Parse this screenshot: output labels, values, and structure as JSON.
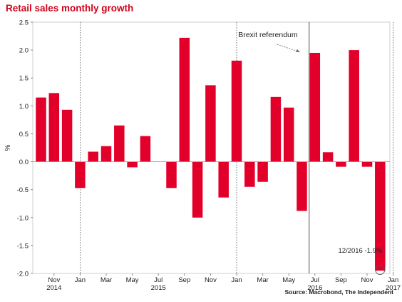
{
  "title": "Retail sales monthly growth",
  "source": "Source: Macrobond, The Independent",
  "colors": {
    "bar": "#e2002a",
    "title": "#d0021b",
    "annotation": "#333333"
  },
  "chart_data": {
    "type": "bar",
    "title": "Retail sales monthly growth",
    "ylabel": "%",
    "xlabel": "",
    "ylim": [
      -2.0,
      2.5
    ],
    "yticks": [
      "2.5",
      "2.0",
      "1.5",
      "1.0",
      "0.5",
      "0.0",
      "-0.5",
      "-1.0",
      "-1.5",
      "-2.0"
    ],
    "ytick_values": [
      2.5,
      2.0,
      1.5,
      1.0,
      0.5,
      0.0,
      -0.5,
      -1.0,
      -1.5,
      -2.0
    ],
    "categories": [
      "2014-10",
      "2014-11",
      "2014-12",
      "2015-01",
      "2015-02",
      "2015-03",
      "2015-04",
      "2015-05",
      "2015-06",
      "2015-07",
      "2015-08",
      "2015-09",
      "2015-10",
      "2015-11",
      "2015-12",
      "2016-01",
      "2016-02",
      "2016-03",
      "2016-04",
      "2016-05",
      "2016-06",
      "2016-07",
      "2016-08",
      "2016-09",
      "2016-10",
      "2016-11",
      "2016-12"
    ],
    "values": [
      1.15,
      1.23,
      0.93,
      -0.47,
      0.18,
      0.28,
      0.65,
      -0.1,
      0.46,
      null,
      -0.47,
      2.22,
      -1.0,
      1.37,
      -0.64,
      1.81,
      -0.45,
      -0.36,
      1.16,
      0.97,
      -0.88,
      1.95,
      0.17,
      -0.09,
      2.0,
      -0.09,
      -1.95
    ],
    "xtick_labels": [
      {
        "label": "Nov",
        "index": 1,
        "year": "2014"
      },
      {
        "label": "Jan",
        "index": 3
      },
      {
        "label": "Mar",
        "index": 5
      },
      {
        "label": "May",
        "index": 7
      },
      {
        "label": "Jul",
        "index": 9,
        "year": "2015"
      },
      {
        "label": "Sep",
        "index": 11
      },
      {
        "label": "Nov",
        "index": 13
      },
      {
        "label": "Jan",
        "index": 15
      },
      {
        "label": "Mar",
        "index": 17
      },
      {
        "label": "May",
        "index": 19
      },
      {
        "label": "Jul",
        "index": 21,
        "year": "2016"
      },
      {
        "label": "Sep",
        "index": 23
      },
      {
        "label": "Nov",
        "index": 25
      },
      {
        "label": "Jan",
        "index": 27,
        "year": "2017"
      }
    ],
    "year_dividers": [
      3,
      15,
      27
    ],
    "event_line": {
      "label": "Brexit referendum",
      "index": 20
    },
    "point_annotation": {
      "label": "12/2016 -1.9%",
      "index": 26
    },
    "grid": false
  }
}
